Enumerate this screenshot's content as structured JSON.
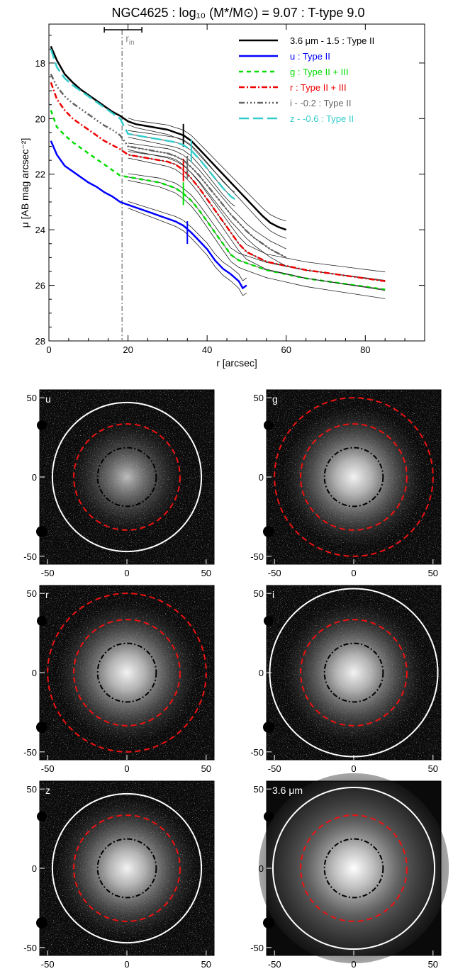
{
  "chart_data": [
    {
      "type": "line",
      "title": "NGC4625 : log₁₀ (M*/M⊙) = 9.07 : T-type 9.0",
      "xlabel": "r [arcsec]",
      "ylabel": "μ [AB mag arcsec⁻²]",
      "xlim": [
        0,
        95
      ],
      "ylim": [
        28,
        16.6
      ],
      "xticks": [
        "0",
        "20",
        "40",
        "60",
        "80"
      ],
      "yticks": [
        "18",
        "20",
        "22",
        "24",
        "26",
        "28"
      ],
      "legend_position": "top-right",
      "annotation_rin": {
        "label": "r",
        "subscript": "in",
        "x": 18.5,
        "error_low": 14,
        "error_high": 23.5
      },
      "series": [
        {
          "name": "3.6 μm - 1.5 : Type II",
          "color": "#000000",
          "dash": "",
          "break_r": 34,
          "x": [
            0.5,
            2,
            4,
            6,
            8,
            10,
            12,
            14,
            16,
            18,
            20,
            22,
            24,
            26,
            28,
            30,
            32,
            34,
            36,
            38,
            40,
            42,
            44,
            46,
            48,
            50,
            52,
            54,
            56,
            58,
            60
          ],
          "y": [
            17.4,
            17.9,
            18.4,
            18.7,
            18.95,
            19.15,
            19.35,
            19.55,
            19.75,
            19.9,
            20.1,
            20.2,
            20.25,
            20.3,
            20.35,
            20.4,
            20.5,
            20.6,
            20.8,
            21.1,
            21.4,
            21.7,
            22.0,
            22.3,
            22.6,
            22.9,
            23.2,
            23.5,
            23.75,
            23.9,
            24.0
          ]
        },
        {
          "name": "u : Type II",
          "color": "#0000ff",
          "dash": "",
          "break_r": 35,
          "x": [
            0.5,
            2,
            4,
            6,
            8,
            10,
            12,
            14,
            16,
            18,
            20,
            22,
            24,
            26,
            28,
            30,
            32,
            34,
            36,
            38,
            40,
            42,
            44,
            46,
            48,
            49,
            50
          ],
          "y": [
            20.8,
            21.3,
            21.7,
            21.9,
            22.1,
            22.3,
            22.45,
            22.65,
            22.8,
            23.0,
            23.1,
            23.2,
            23.3,
            23.4,
            23.5,
            23.6,
            23.7,
            23.85,
            24.1,
            24.4,
            24.7,
            25.1,
            25.4,
            25.6,
            25.85,
            26.1,
            26.0
          ]
        },
        {
          "name": "g : Type II + III",
          "color": "#00dd00",
          "dash": "6,5",
          "break_r": 34,
          "x": [
            0.5,
            2,
            4,
            6,
            8,
            10,
            12,
            14,
            16,
            18,
            20,
            22,
            24,
            26,
            28,
            30,
            32,
            34,
            36,
            38,
            40,
            42,
            44,
            46,
            48,
            50,
            55,
            60,
            65,
            70,
            75,
            80,
            85
          ],
          "y": [
            19.7,
            20.3,
            20.6,
            20.85,
            21.05,
            21.25,
            21.45,
            21.65,
            21.85,
            22.05,
            22.1,
            22.15,
            22.2,
            22.25,
            22.3,
            22.4,
            22.5,
            22.7,
            22.95,
            23.3,
            23.7,
            24.1,
            24.5,
            24.9,
            25.1,
            25.2,
            25.45,
            25.6,
            25.75,
            25.85,
            25.95,
            26.05,
            26.15
          ]
        },
        {
          "name": "r : Type II + III",
          "color": "#ee0000",
          "dash": "8,3,2,3",
          "break_r": 34,
          "x": [
            0.5,
            2,
            4,
            6,
            8,
            10,
            12,
            14,
            16,
            18,
            20,
            22,
            24,
            26,
            28,
            30,
            32,
            34,
            36,
            38,
            40,
            42,
            44,
            46,
            48,
            50,
            55,
            60,
            65,
            70,
            75,
            80,
            85
          ],
          "y": [
            18.7,
            19.3,
            19.7,
            20.0,
            20.2,
            20.4,
            20.6,
            20.8,
            20.95,
            21.1,
            21.3,
            21.35,
            21.4,
            21.45,
            21.5,
            21.55,
            21.65,
            21.85,
            22.15,
            22.5,
            22.9,
            23.3,
            23.7,
            24.1,
            24.5,
            24.8,
            25.15,
            25.3,
            25.45,
            25.55,
            25.65,
            25.75,
            25.85
          ]
        },
        {
          "name": "i - -0.2 : Type II",
          "color": "#666666",
          "dash": "8,3,2,3,2,3,2,3",
          "break_r": 35,
          "x": [
            0.5,
            2,
            4,
            6,
            8,
            10,
            12,
            14,
            16,
            18,
            20,
            22,
            24,
            26,
            28,
            30,
            32,
            34,
            36,
            38,
            40,
            42,
            44,
            46,
            48,
            50,
            52,
            54,
            56,
            58,
            60
          ],
          "y": [
            18.4,
            18.85,
            19.2,
            19.45,
            19.65,
            19.85,
            20.05,
            20.25,
            20.4,
            20.6,
            21.0,
            21.05,
            21.1,
            21.15,
            21.2,
            21.25,
            21.35,
            21.5,
            21.75,
            22.05,
            22.4,
            22.75,
            23.1,
            23.45,
            23.75,
            24.05,
            24.3,
            24.5,
            24.7,
            24.85,
            25.0
          ]
        },
        {
          "name": "z - -0.6 : Type II",
          "color": "#33cccc",
          "dash": "14,6",
          "break_r": 36,
          "x": [
            0.5,
            2,
            4,
            6,
            8,
            10,
            12,
            14,
            16,
            18,
            20,
            22,
            24,
            26,
            28,
            30,
            32,
            34,
            36,
            38,
            40,
            42,
            44,
            46,
            47
          ],
          "y": [
            17.5,
            18.15,
            18.55,
            18.8,
            19.0,
            19.2,
            19.4,
            19.6,
            19.8,
            20.0,
            20.55,
            20.6,
            20.65,
            20.7,
            20.75,
            20.8,
            20.85,
            20.95,
            21.15,
            21.45,
            21.8,
            22.15,
            22.5,
            22.8,
            22.9
          ]
        }
      ]
    },
    {
      "type": "image",
      "panels": [
        {
          "label": "u",
          "xticks": [
            "-50",
            "0",
            "50"
          ],
          "yticks": [
            "50",
            "0",
            "-50"
          ],
          "white_circle_r": 47,
          "red_circle_r": 33.5,
          "black_circle_r": 18.5
        },
        {
          "label": "g",
          "xticks": [
            "-50",
            "0",
            "50"
          ],
          "yticks": [
            "50",
            "0",
            "-50"
          ],
          "white_circle_r": 0,
          "red_circle_r": 33.5,
          "black_circle_r": 18.5,
          "red_outer_r": 50
        },
        {
          "label": "r",
          "xticks": [
            "-50",
            "0",
            "50"
          ],
          "yticks": [
            "50",
            "0",
            "-50"
          ],
          "white_circle_r": 0,
          "red_circle_r": 33.5,
          "black_circle_r": 18.5,
          "red_outer_r": 50
        },
        {
          "label": "i",
          "xticks": [
            "-50",
            "0",
            "50"
          ],
          "yticks": [
            "50",
            "0",
            "-50"
          ],
          "white_circle_r": 53,
          "red_circle_r": 33.5,
          "black_circle_r": 18.5
        },
        {
          "label": "z",
          "xticks": [
            "-50",
            "0",
            "50"
          ],
          "yticks": [
            "50",
            "0",
            "-50"
          ],
          "white_circle_r": 47,
          "red_circle_r": 33.5,
          "black_circle_r": 18.5
        },
        {
          "label": "3.6 μm",
          "xticks": [
            "-50",
            "0",
            "50"
          ],
          "yticks": [
            "50",
            "0",
            "-50"
          ],
          "white_circle_r": 51,
          "red_circle_r": 33.5,
          "black_circle_r": 18.5
        }
      ]
    }
  ]
}
